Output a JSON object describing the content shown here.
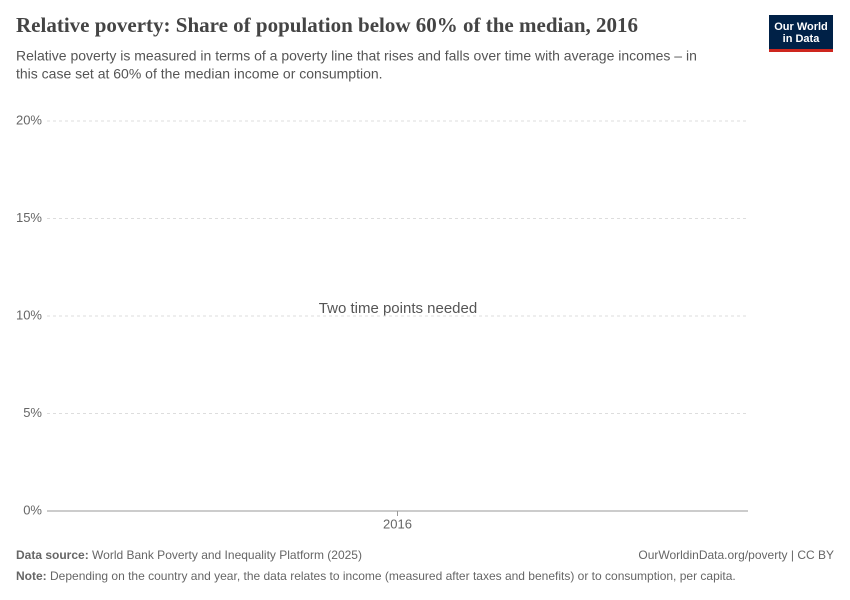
{
  "chart_data": {
    "type": "line",
    "title": "Relative poverty: Share of population below 60% of the median, 2016",
    "subtitle": [
      "Relative poverty is measured in terms of a poverty line that rises and falls over time with average incomes – in",
      "this case set at 60% of the median income or consumption."
    ],
    "annotation": "Two time points needed",
    "x": [
      "2016"
    ],
    "series": [],
    "ylim": [
      0,
      20
    ],
    "yticks": [
      {
        "value": 0,
        "label": "0%"
      },
      {
        "value": 5,
        "label": "5%"
      },
      {
        "value": 10,
        "label": "10%"
      },
      {
        "value": 15,
        "label": "15%"
      },
      {
        "value": 20,
        "label": "20%"
      }
    ],
    "grid": true
  },
  "logo": [
    "Our World",
    "in Data"
  ],
  "footer": {
    "source_label": "Data source:",
    "source": "World Bank Poverty and Inequality Platform (2025)",
    "url": "OurWorldinData.org/poverty | CC BY",
    "note_label": "Note:",
    "note": "Depending on the country and year, the data relates to income (measured after taxes and benefits) or to consumption, per capita."
  }
}
